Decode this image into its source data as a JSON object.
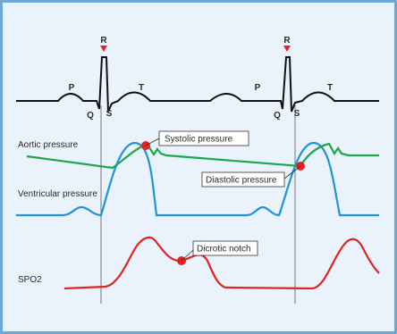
{
  "ecg": {
    "labels": {
      "p": "P",
      "q": "Q",
      "r": "R",
      "s": "S",
      "t": "T"
    }
  },
  "rows": {
    "aortic_pressure": "Aortic pressure",
    "ventricular_pressure": "Ventricular pressure",
    "spo2": "SPO2"
  },
  "callouts": {
    "systolic": "Systolic pressure",
    "diastolic": "Diastolic pressure",
    "dicrotic": "Dicrotic notch"
  },
  "colors": {
    "frame_border": "#6da7d8",
    "background": "#eaf3fb",
    "ecg": "#111111",
    "aortic": "#1ea64a",
    "ventricular": "#1f93d8",
    "spo2": "#e4231f",
    "marker": "#e4231f"
  }
}
